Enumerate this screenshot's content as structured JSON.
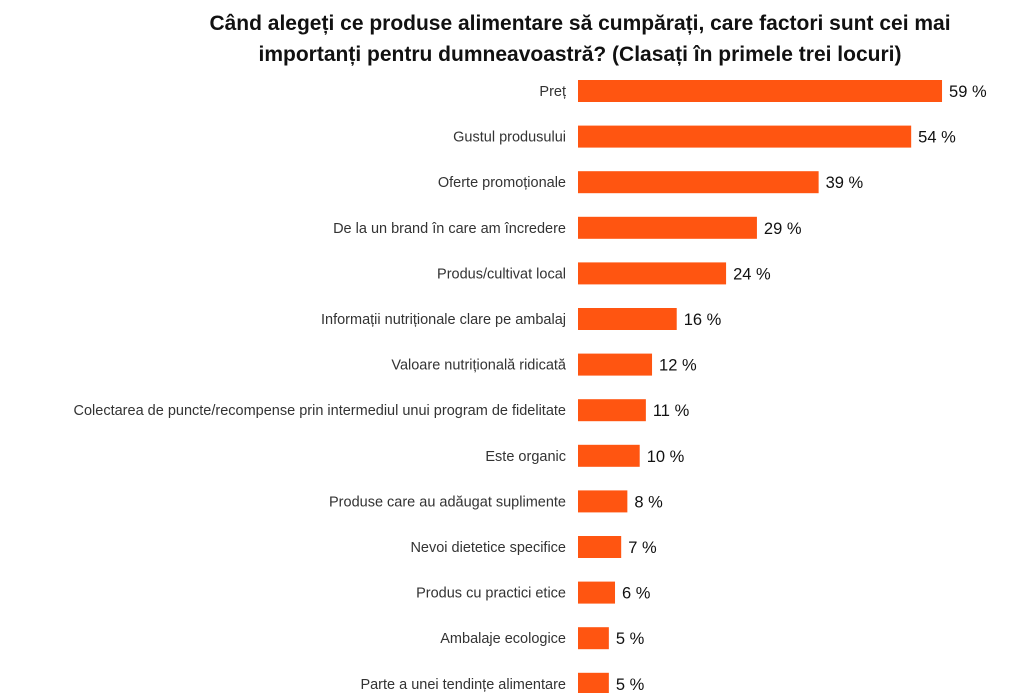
{
  "chart_data": {
    "type": "bar",
    "orientation": "horizontal",
    "title_lines": [
      "Când alegeți ce produse alimentare să cumpărați, care factori sunt cei mai",
      "importanți pentru dumneavoastră? (Clasați în primele trei locuri)"
    ],
    "categories": [
      "Preț",
      "Gustul produsului",
      "Oferte promoționale",
      "De la un brand în care am încredere",
      "Produs/cultivat local",
      "Informații nutriționale clare pe ambalaj",
      "Valoare nutrițională ridicată",
      "Colectarea de puncte/recompense prin intermediul unui program de fidelitate",
      "Este organic",
      "Produse care au adăugat suplimente",
      "Nevoi dietetice specifice",
      "Produs cu practici etice",
      "Ambalaje ecologice",
      "Parte a unei tendințe alimentare"
    ],
    "values": [
      59,
      54,
      39,
      29,
      24,
      16,
      12,
      11,
      10,
      8,
      7,
      6,
      5,
      5
    ],
    "value_labels": [
      "59 %",
      "54 %",
      "39 %",
      "29 %",
      "24 %",
      "16 %",
      "12 %",
      "11 %",
      "10 %",
      "8 %",
      "7 %",
      "6 %",
      "5 %",
      "5 %"
    ],
    "bar_color": "#ff5511",
    "grid": false,
    "legend": "none"
  }
}
